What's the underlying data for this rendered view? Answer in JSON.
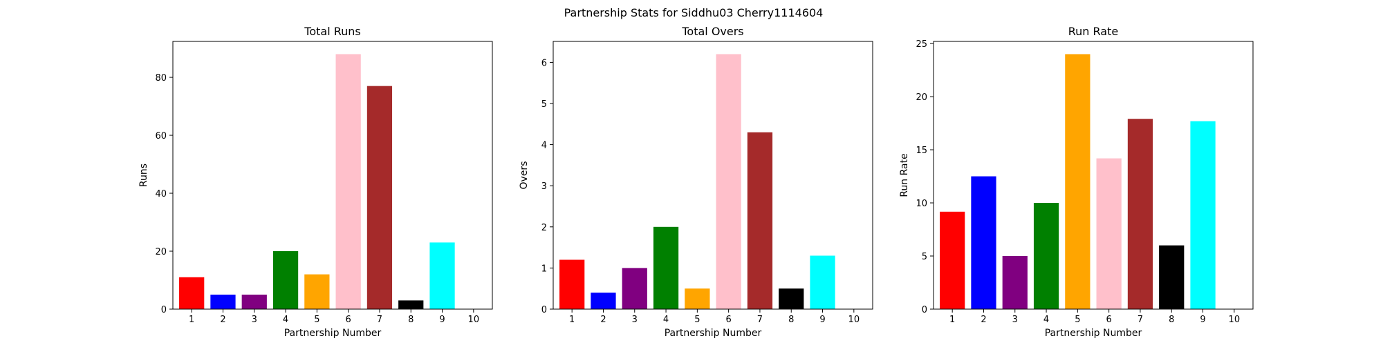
{
  "figure_title": "Partnership Stats for Siddhu03 Cherry1114604",
  "bar_colors": [
    "#ff0000",
    "#0000ff",
    "#800080",
    "#008000",
    "#ffa500",
    "#ffc0cb",
    "#a52a2a",
    "#000000",
    "#00ffff",
    "#ffffff"
  ],
  "chart_data": [
    {
      "type": "bar",
      "title": "Total Runs",
      "xlabel": "Partnership Number",
      "ylabel": "Runs",
      "categories": [
        "1",
        "2",
        "3",
        "4",
        "5",
        "6",
        "7",
        "8",
        "9",
        "10"
      ],
      "values": [
        11,
        5,
        5,
        20,
        12,
        88,
        77,
        3,
        23,
        0
      ],
      "ylim": [
        0,
        92.4
      ],
      "yticks": [
        "0",
        "20",
        "40",
        "60",
        "80"
      ],
      "grid": false
    },
    {
      "type": "bar",
      "title": "Total Overs",
      "xlabel": "Partnership Number",
      "ylabel": "Overs",
      "categories": [
        "1",
        "2",
        "3",
        "4",
        "5",
        "6",
        "7",
        "8",
        "9",
        "10"
      ],
      "values": [
        1.2,
        0.4,
        1.0,
        2.0,
        0.5,
        6.2,
        4.3,
        0.5,
        1.3,
        0
      ],
      "ylim": [
        0,
        6.51
      ],
      "yticks": [
        "0",
        "1",
        "2",
        "3",
        "4",
        "5",
        "6"
      ],
      "grid": false
    },
    {
      "type": "bar",
      "title": "Run Rate",
      "xlabel": "Partnership Number",
      "ylabel": "Run Rate",
      "categories": [
        "1",
        "2",
        "3",
        "4",
        "5",
        "6",
        "7",
        "8",
        "9",
        "10"
      ],
      "values": [
        9.17,
        12.5,
        5.0,
        10.0,
        24.0,
        14.19,
        17.91,
        6.0,
        17.69,
        null
      ],
      "ylim": [
        0,
        25.2
      ],
      "yticks": [
        "0",
        "5",
        "10",
        "15",
        "20",
        "25"
      ],
      "grid": false
    }
  ]
}
